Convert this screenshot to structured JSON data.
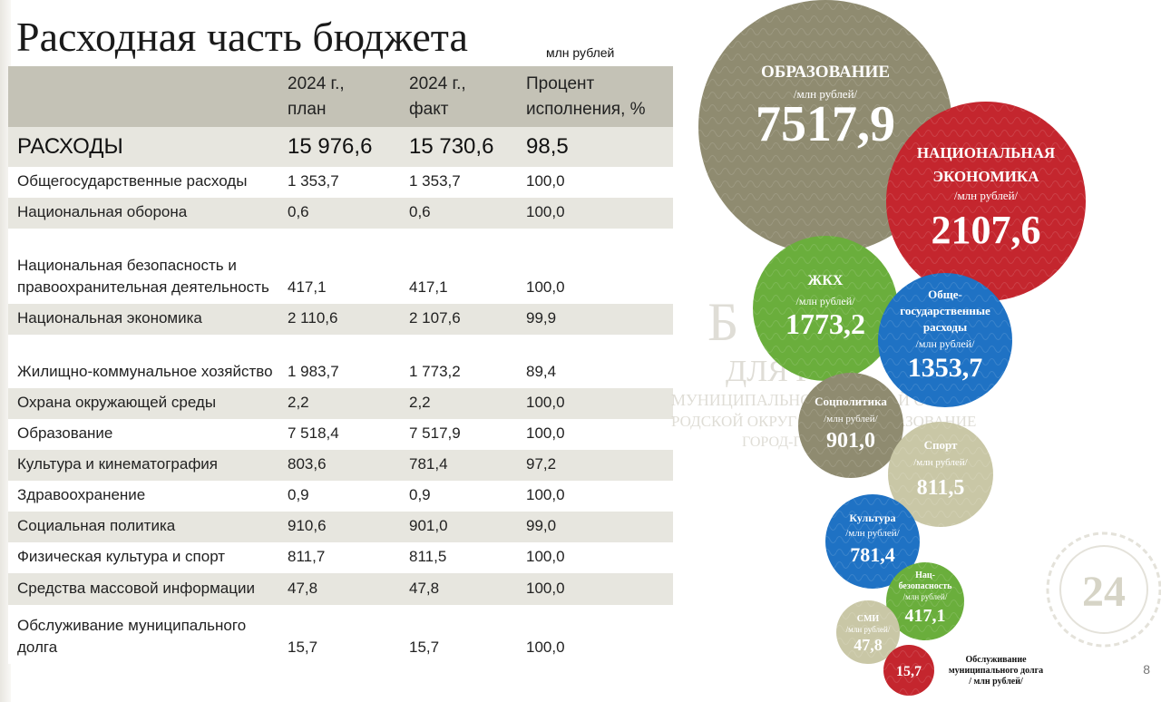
{
  "title": "Расходная часть бюджета",
  "units": "млн рублей",
  "table": {
    "headers": {
      "plan": [
        "2024 г.,",
        "план"
      ],
      "fact": [
        "2024 г.,",
        "факт"
      ],
      "percent": [
        "Процент",
        "исполнения, %"
      ]
    },
    "total": {
      "name": "РАСХОДЫ",
      "plan": "15 976,6",
      "fact": "15 730,6",
      "percent": "98,5"
    },
    "rows": [
      {
        "name": "Общегосударственные расходы",
        "plan": "1 353,7",
        "fact": "1 353,7",
        "percent": "100,0"
      },
      {
        "name": "Национальная оборона",
        "plan": "0,6",
        "fact": "0,6",
        "percent": "100,0"
      },
      {
        "name": "Национальная безопасность и правоохранительная деятельность",
        "plan": "417,1",
        "fact": "417,1",
        "percent": "100,0"
      },
      {
        "name": "Национальная экономика",
        "plan": "2 110,6",
        "fact": "2 107,6",
        "percent": "99,9"
      },
      {
        "name": "Жилищно-коммунальное хозяйство",
        "plan": "1 983,7",
        "fact": "1 773,2",
        "percent": "89,4"
      },
      {
        "name": "Охрана окружающей среды",
        "plan": "2,2",
        "fact": "2,2",
        "percent": "100,0"
      },
      {
        "name": "Образование",
        "plan": "7 518,4",
        "fact": "7 517,9",
        "percent": "100,0"
      },
      {
        "name": "Культура и кинематография",
        "plan": "803,6",
        "fact": "781,4",
        "percent": "97,2"
      },
      {
        "name": "Здравоохранение",
        "plan": "0,9",
        "fact": "0,9",
        "percent": "100,0"
      },
      {
        "name": "Социальная политика",
        "plan": "910,6",
        "fact": "901,0",
        "percent": "99,0"
      },
      {
        "name": "Физическая культура и спорт",
        "plan": "811,7",
        "fact": "811,5",
        "percent": "100,0"
      },
      {
        "name": "Средства массовой информации",
        "plan": "47,8",
        "fact": "47,8",
        "percent": "100,0"
      },
      {
        "name": "Обслуживание муниципального долга",
        "plan": "15,7",
        "fact": "15,7",
        "percent": "100,0"
      }
    ]
  },
  "bubbles": [
    {
      "label": [
        "ОБРАЗОВАНИЕ"
      ],
      "unit": "/млн рублей/",
      "value": "7517,9",
      "color": "#8f8b70"
    },
    {
      "label": [
        "НАЦИОНАЛЬНАЯ",
        "ЭКОНОМИКА"
      ],
      "unit": "/млн рублей/",
      "value": "2107,6",
      "color": "#c4262e"
    },
    {
      "label": [
        "ЖКХ"
      ],
      "unit": "/млн рублей/",
      "value": "1773,2",
      "color": "#6aae3c"
    },
    {
      "label": [
        "Обще-",
        "государственные",
        "расходы"
      ],
      "unit": "/млн рублей/",
      "value": "1353,7",
      "color": "#1f72c4"
    },
    {
      "label": [
        "Соцполитика"
      ],
      "unit": "/млн рублей/",
      "value": "901,0",
      "color": "#8f8b70"
    },
    {
      "label": [
        "Спорт"
      ],
      "unit": "/млн рублей/",
      "value": "811,5",
      "color": "#c9c7a6"
    },
    {
      "label": [
        "Культура"
      ],
      "unit": "/млн рублей/",
      "value": "781,4",
      "color": "#1f72c4"
    },
    {
      "label": [
        "Нац-",
        "безопасность"
      ],
      "unit": "/млн рублей/",
      "value": "417,1",
      "color": "#6aae3c"
    },
    {
      "label": [
        "СМИ"
      ],
      "unit": "/млн рублей/",
      "value": "47,8",
      "color": "#c9c7a6"
    },
    {
      "label": [],
      "unit": "",
      "value": "15,7",
      "color": "#c4262e"
    }
  ],
  "debt_label": [
    "Обслуживание",
    "муниципального долга",
    "/ млн рублей/"
  ],
  "watermark": [
    "Б",
    "ДЛЯ Г",
    "МУНИЦИПАЛЬНОЕ",
    "Й ОКРУГ",
    "РОДСКОЙ ОКРУГ М",
    "ОЕ ОБРАЗОВАНИЕ",
    "ГОРОД-ГЕ"
  ],
  "seal_text": "24",
  "page_number": "8"
}
